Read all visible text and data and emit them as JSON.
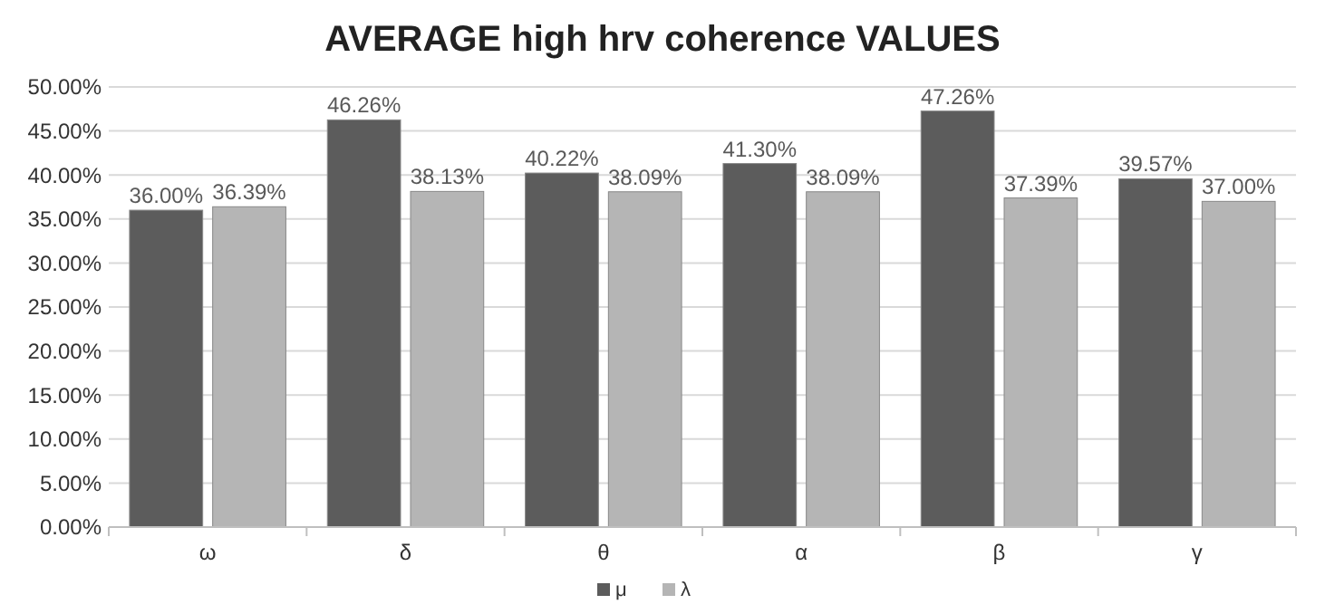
{
  "chart_data": {
    "type": "bar",
    "title": "AVERAGE high hrv coherence VALUES",
    "categories": [
      "ω",
      "δ",
      "θ",
      "α",
      "β",
      "γ"
    ],
    "series": [
      {
        "name": "μ",
        "color": "#5c5c5c",
        "values": [
          36.0,
          46.26,
          40.22,
          41.3,
          47.26,
          39.57
        ],
        "value_labels": [
          "36.00%",
          "46.26%",
          "40.22%",
          "41.30%",
          "47.26%",
          "39.57%"
        ]
      },
      {
        "name": "λ",
        "color": "#b5b5b5",
        "values": [
          36.39,
          38.13,
          38.09,
          38.09,
          37.39,
          37.0
        ],
        "value_labels": [
          "36.39%",
          "38.13%",
          "38.09%",
          "38.09%",
          "37.39%",
          "37.00%"
        ]
      }
    ],
    "ylim": [
      0,
      50
    ],
    "yticks": [
      {
        "value": 0,
        "label": "0.00%"
      },
      {
        "value": 5,
        "label": "5.00%"
      },
      {
        "value": 10,
        "label": "10.00%"
      },
      {
        "value": 15,
        "label": "15.00%"
      },
      {
        "value": 20,
        "label": "20.00%"
      },
      {
        "value": 25,
        "label": "25.00%"
      },
      {
        "value": 30,
        "label": "30.00%"
      },
      {
        "value": 35,
        "label": "35.00%"
      },
      {
        "value": 40,
        "label": "40.00%"
      },
      {
        "value": 45,
        "label": "45.00%"
      },
      {
        "value": 50,
        "label": "50.00%"
      }
    ],
    "grid": "y",
    "legend": "bottom"
  }
}
